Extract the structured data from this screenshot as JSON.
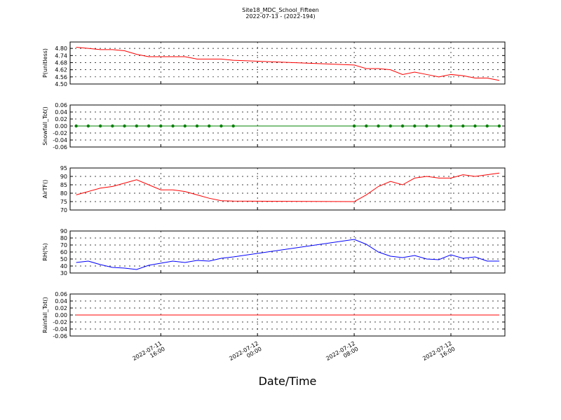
{
  "chart_data": {
    "type": "line",
    "title": "Site18_MDC_School_Fifteen",
    "subtitle": "2022-07-13 - (2022-194)",
    "xlabel": "Date/Time",
    "x": [
      "2022-07-11 09:00",
      "2022-07-11 10:00",
      "2022-07-11 11:00",
      "2022-07-11 12:00",
      "2022-07-11 13:00",
      "2022-07-11 14:00",
      "2022-07-11 15:00",
      "2022-07-11 16:00",
      "2022-07-11 17:00",
      "2022-07-11 18:00",
      "2022-07-11 19:00",
      "2022-07-11 20:00",
      "2022-07-11 21:00",
      "2022-07-11 22:00",
      "2022-07-12 08:00",
      "2022-07-12 09:00",
      "2022-07-12 10:00",
      "2022-07-12 11:00",
      "2022-07-12 12:00",
      "2022-07-12 13:00",
      "2022-07-12 14:00",
      "2022-07-12 15:00",
      "2022-07-12 16:00",
      "2022-07-12 17:00",
      "2022-07-12 18:00",
      "2022-07-12 19:00",
      "2022-07-12 20:00"
    ],
    "xlim": [
      "2022-07-11 08:30",
      "2022-07-12 20:28"
    ],
    "xticks": [
      "2022-07-11 16:00",
      "2022-07-12 00:00",
      "2022-07-12 08:00",
      "2022-07-12 16:00"
    ],
    "grid": true,
    "panels": [
      {
        "ylabel": "P(unitless)",
        "color": "#ff0000",
        "markers": false,
        "ylim": [
          4.5,
          4.854
        ],
        "yticks": [
          {
            "value": 4.5,
            "label": "4.50"
          },
          4.56,
          4.62,
          4.68,
          4.74,
          {
            "value": 4.8,
            "label": "4.80"
          }
        ],
        "values": [
          4.81,
          4.8,
          4.79,
          4.79,
          4.78,
          4.75,
          4.73,
          4.73,
          4.73,
          4.73,
          4.71,
          4.71,
          4.71,
          4.7,
          4.66,
          4.63,
          4.63,
          4.62,
          4.58,
          4.6,
          4.58,
          4.56,
          4.58,
          4.57,
          4.55,
          4.55,
          4.53
        ]
      },
      {
        "ylabel": "Snowfall_Tot()",
        "color": "#008000",
        "markers": true,
        "ylim": [
          -0.06,
          0.06
        ],
        "yticks": [
          -0.06,
          -0.04,
          -0.02,
          {
            "value": 0,
            "label": "0.00"
          },
          0.02,
          0.04,
          0.06
        ],
        "values": [
          0,
          0,
          0,
          0,
          0,
          0,
          0,
          0,
          0,
          0,
          0,
          0,
          0,
          0,
          0,
          0,
          0,
          0,
          0,
          0,
          0,
          0,
          0,
          0,
          0,
          0,
          0
        ]
      },
      {
        "ylabel": "AirTF()",
        "color": "#ff0000",
        "markers": false,
        "ylim": [
          70,
          95
        ],
        "yticks": [
          70,
          75,
          80,
          85,
          90,
          95
        ],
        "values": [
          79,
          81,
          83,
          84,
          86,
          88,
          85,
          82,
          82,
          81,
          79,
          77,
          75.5,
          75.3,
          75,
          79,
          84,
          87,
          85,
          89,
          90,
          89,
          89,
          91,
          90,
          91,
          92
        ]
      },
      {
        "ylabel": "RH(%)",
        "color": "#0000ff",
        "markers": false,
        "ylim": [
          30,
          90
        ],
        "yticks": [
          30,
          40,
          50,
          60,
          70,
          80,
          90
        ],
        "values": [
          45,
          47,
          42,
          38,
          37,
          35,
          41,
          44,
          47,
          45,
          48,
          47,
          51,
          53,
          78,
          71,
          60,
          54,
          52,
          55,
          50,
          49,
          56,
          51,
          53,
          47,
          47
        ]
      },
      {
        "ylabel": "Rainfall_Tot()",
        "color": "#ff0000",
        "markers": false,
        "ylim": [
          -0.06,
          0.06
        ],
        "yticks": [
          -0.06,
          -0.04,
          -0.02,
          {
            "value": 0,
            "label": "0.00"
          },
          0.02,
          0.04,
          0.06
        ],
        "values": [
          0,
          0,
          0,
          0,
          0,
          0,
          0,
          0,
          0,
          0,
          0,
          0,
          0,
          0,
          0,
          0,
          0,
          0,
          0,
          0,
          0,
          0,
          0,
          0,
          0,
          0,
          0
        ]
      }
    ]
  }
}
